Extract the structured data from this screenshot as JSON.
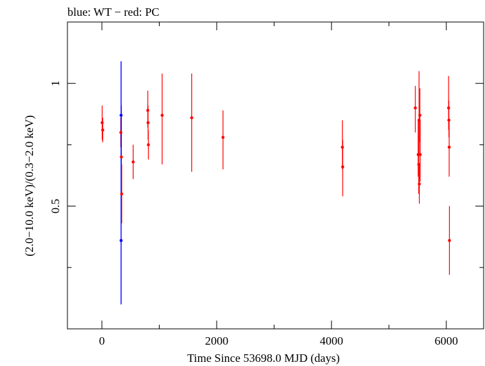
{
  "chart_data": {
    "type": "scatter",
    "title": "blue: WT − red: PC",
    "xlabel": "Time Since 53698.0 MJD (days)",
    "ylabel": "(2.0−10.0 keV)/(0.3−2.0 keV)",
    "xlim": [
      -600,
      6650
    ],
    "ylim": [
      0.0,
      1.25
    ],
    "x_ticks": [
      0,
      2000,
      4000,
      6000
    ],
    "x_tick_labels": [
      "0",
      "2000",
      "4000",
      "6000"
    ],
    "y_ticks": [
      0.5,
      1.0
    ],
    "y_tick_labels": [
      "0.5",
      "1"
    ],
    "grid": false,
    "legend": "none",
    "series": [
      {
        "name": "WT",
        "color": "#0000ff",
        "points": [
          {
            "x": 335,
            "y": 0.87,
            "ylo": 0.1,
            "yhi": 1.09
          },
          {
            "x": 335,
            "y": 0.36,
            "ylo": 0.1,
            "yhi": 1.09
          }
        ]
      },
      {
        "name": "PC",
        "color": "#ff0000",
        "points": [
          {
            "x": 5,
            "y": 0.84,
            "ylo": 0.77,
            "yhi": 0.91
          },
          {
            "x": 15,
            "y": 0.81,
            "ylo": 0.76,
            "yhi": 0.86
          },
          {
            "x": 330,
            "y": 0.8,
            "ylo": 0.74,
            "yhi": 0.86
          },
          {
            "x": 340,
            "y": 0.7,
            "ylo": 0.55,
            "yhi": 0.91
          },
          {
            "x": 345,
            "y": 0.55,
            "ylo": 0.43,
            "yhi": 0.67
          },
          {
            "x": 545,
            "y": 0.68,
            "ylo": 0.61,
            "yhi": 0.75
          },
          {
            "x": 800,
            "y": 0.89,
            "ylo": 0.82,
            "yhi": 0.97
          },
          {
            "x": 805,
            "y": 0.84,
            "ylo": 0.77,
            "yhi": 0.91
          },
          {
            "x": 810,
            "y": 0.75,
            "ylo": 0.69,
            "yhi": 0.81
          },
          {
            "x": 1050,
            "y": 0.87,
            "ylo": 0.67,
            "yhi": 1.04
          },
          {
            "x": 1565,
            "y": 0.86,
            "ylo": 0.64,
            "yhi": 1.04
          },
          {
            "x": 2110,
            "y": 0.78,
            "ylo": 0.65,
            "yhi": 0.89
          },
          {
            "x": 4190,
            "y": 0.74,
            "ylo": 0.65,
            "yhi": 0.85
          },
          {
            "x": 4195,
            "y": 0.66,
            "ylo": 0.54,
            "yhi": 0.77
          },
          {
            "x": 5460,
            "y": 0.9,
            "ylo": 0.8,
            "yhi": 0.99
          },
          {
            "x": 5510,
            "y": 0.71,
            "ylo": 0.62,
            "yhi": 0.85
          },
          {
            "x": 5520,
            "y": 0.67,
            "ylo": 0.55,
            "yhi": 0.79
          },
          {
            "x": 5525,
            "y": 0.85,
            "ylo": 0.71,
            "yhi": 1.05
          },
          {
            "x": 5530,
            "y": 0.59,
            "ylo": 0.51,
            "yhi": 0.67
          },
          {
            "x": 5540,
            "y": 0.87,
            "ylo": 0.76,
            "yhi": 0.98
          },
          {
            "x": 5545,
            "y": 0.71,
            "ylo": 0.6,
            "yhi": 0.85
          },
          {
            "x": 6040,
            "y": 0.9,
            "ylo": 0.81,
            "yhi": 1.03
          },
          {
            "x": 6045,
            "y": 0.85,
            "ylo": 0.78,
            "yhi": 0.93
          },
          {
            "x": 6050,
            "y": 0.74,
            "ylo": 0.62,
            "yhi": 0.85
          },
          {
            "x": 6055,
            "y": 0.36,
            "ylo": 0.22,
            "yhi": 0.5
          }
        ]
      }
    ]
  }
}
